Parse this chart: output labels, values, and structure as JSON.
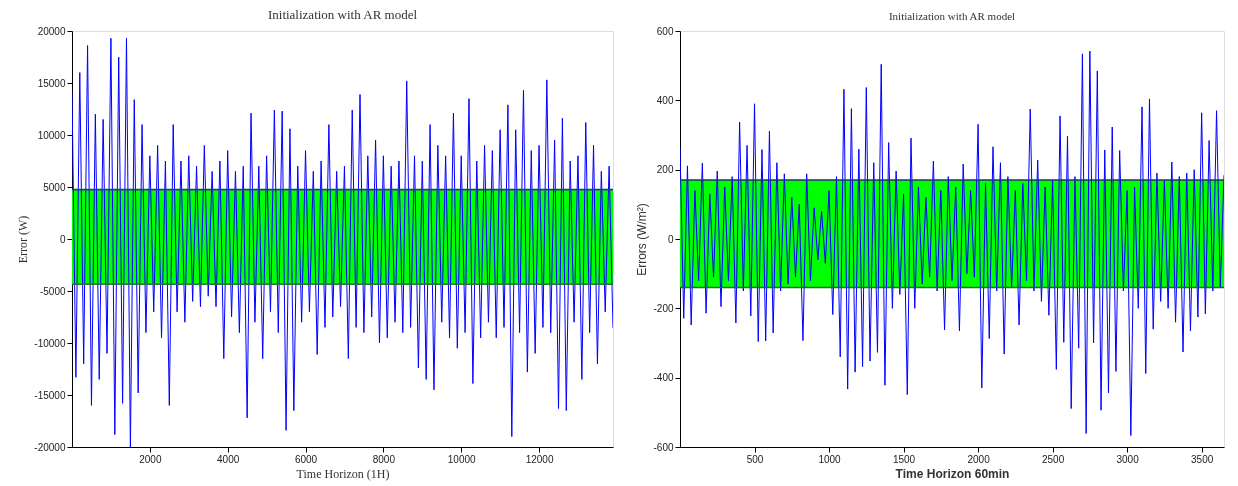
{
  "chart_data": [
    {
      "type": "line",
      "title": "Initialization with AR model",
      "xlabel": "Time Horizon (1H)",
      "ylabel": "Error (W)",
      "xlim": [
        0,
        13900
      ],
      "xticks": [
        2000,
        4000,
        6000,
        8000,
        10000,
        12000
      ],
      "ylim": [
        -20000,
        20000
      ],
      "yticks": [
        -20000,
        -15000,
        -10000,
        -5000,
        0,
        5000,
        10000,
        15000,
        20000
      ],
      "grid": false,
      "marker": "none",
      "line_style": "solid",
      "bands": [
        {
          "axis": "y",
          "from": -4350,
          "to": 4750,
          "color": "#00ff00"
        }
      ],
      "ref_lines": [
        {
          "axis": "y",
          "value": 4750,
          "color": "#2a3a8a"
        },
        {
          "axis": "y",
          "value": -4350,
          "color": "#2e6e3e"
        }
      ],
      "x": [
        0,
        100,
        200,
        300,
        400,
        500,
        600,
        700,
        800,
        900,
        1000,
        1100,
        1200,
        1300,
        1400,
        1500,
        1600,
        1700,
        1800,
        1900,
        2000,
        2100,
        2200,
        2300,
        2400,
        2500,
        2600,
        2700,
        2800,
        2900,
        3000,
        3100,
        3200,
        3300,
        3400,
        3500,
        3600,
        3700,
        3800,
        3900,
        4000,
        4100,
        4200,
        4300,
        4400,
        4500,
        4600,
        4700,
        4800,
        4900,
        5000,
        5100,
        5200,
        5300,
        5400,
        5500,
        5600,
        5700,
        5800,
        5900,
        6000,
        6100,
        6200,
        6300,
        6400,
        6500,
        6600,
        6700,
        6800,
        6900,
        7000,
        7100,
        7200,
        7300,
        7400,
        7500,
        7600,
        7700,
        7800,
        7900,
        8000,
        8100,
        8200,
        8300,
        8400,
        8500,
        8600,
        8700,
        8800,
        8900,
        9000,
        9100,
        9200,
        9300,
        9400,
        9500,
        9600,
        9700,
        9800,
        9900,
        10000,
        10100,
        10200,
        10300,
        10400,
        10500,
        10600,
        10700,
        10800,
        10900,
        11000,
        11100,
        11200,
        11300,
        11400,
        11500,
        11600,
        11700,
        11800,
        11900,
        12000,
        12100,
        12200,
        12300,
        12400,
        12500,
        12600,
        12700,
        12800,
        12900,
        13000,
        13100,
        13200,
        13300,
        13400,
        13500,
        13600,
        13700,
        13800,
        13900
      ],
      "series": [
        {
          "color": "#0000ff",
          "values": [
            14200,
            -13300,
            16000,
            -12000,
            18600,
            -16000,
            12000,
            -13500,
            11500,
            -11000,
            19300,
            -18800,
            17500,
            -15800,
            19300,
            -20000,
            13400,
            -14800,
            11000,
            -9000,
            8000,
            -7000,
            9000,
            -9500,
            7500,
            -16000,
            11000,
            -7000,
            7500,
            -8000,
            8000,
            -6000,
            7000,
            -6500,
            9000,
            -5500,
            6500,
            -6500,
            7500,
            -11500,
            8500,
            -7500,
            6500,
            -9000,
            7000,
            -17200,
            12100,
            -8000,
            7000,
            -11500,
            8000,
            -7000,
            12400,
            -9000,
            12300,
            -18400,
            10600,
            -16500,
            7000,
            -8000,
            8500,
            -7000,
            6500,
            -11100,
            7500,
            -8500,
            11000,
            -7500,
            6500,
            -6500,
            7000,
            -11500,
            12400,
            -8500,
            13900,
            -9000,
            8000,
            -7500,
            9500,
            -10000,
            8000,
            -9500,
            7000,
            -8000,
            7500,
            -9000,
            15200,
            -8500,
            8000,
            -12400,
            7500,
            -13500,
            11000,
            -14500,
            9000,
            -8000,
            8000,
            -9500,
            12100,
            -10500,
            8000,
            -9000,
            13500,
            -13900,
            7500,
            -9500,
            9000,
            -8000,
            8500,
            -9500,
            10500,
            -8500,
            12900,
            -19000,
            10500,
            -9000,
            14300,
            -12800,
            8500,
            -11000,
            9000,
            -8500,
            15300,
            -9000,
            9500,
            -16300,
            11600,
            -16500,
            7500,
            -8000,
            8000,
            -13500,
            11200,
            -9000,
            9000,
            -12000,
            6500,
            -7000,
            7000,
            -8500
          ]
        }
      ]
    },
    {
      "type": "line",
      "title": "Initialization with AR model",
      "xlabel": "Time Horizon 60min",
      "ylabel": "Errors (W/m²)",
      "xlim": [
        0,
        3650
      ],
      "xticks": [
        500,
        1000,
        1500,
        2000,
        2500,
        3000,
        3500
      ],
      "ylim": [
        -600,
        600
      ],
      "yticks": [
        -600,
        -400,
        -200,
        0,
        200,
        400,
        600
      ],
      "grid": false,
      "marker": "none",
      "line_style": "solid",
      "bands": [
        {
          "axis": "y",
          "from": -140,
          "to": 170,
          "color": "#00ff00"
        }
      ],
      "ref_lines": [
        {
          "axis": "y",
          "value": 170,
          "color": "#22306e"
        },
        {
          "axis": "y",
          "value": -140,
          "color": "#1a6a1a"
        }
      ],
      "x": [
        0,
        25,
        50,
        75,
        100,
        125,
        150,
        175,
        200,
        225,
        250,
        275,
        300,
        325,
        350,
        375,
        400,
        425,
        450,
        475,
        500,
        525,
        550,
        575,
        600,
        625,
        650,
        675,
        700,
        725,
        750,
        775,
        800,
        825,
        850,
        875,
        900,
        925,
        950,
        975,
        1000,
        1025,
        1050,
        1075,
        1100,
        1125,
        1150,
        1175,
        1200,
        1225,
        1250,
        1275,
        1300,
        1325,
        1350,
        1375,
        1400,
        1425,
        1450,
        1475,
        1500,
        1525,
        1550,
        1575,
        1600,
        1625,
        1650,
        1675,
        1700,
        1725,
        1750,
        1775,
        1800,
        1825,
        1850,
        1875,
        1900,
        1925,
        1950,
        1975,
        2000,
        2025,
        2050,
        2075,
        2100,
        2125,
        2150,
        2175,
        2200,
        2225,
        2250,
        2275,
        2300,
        2325,
        2350,
        2375,
        2400,
        2425,
        2450,
        2475,
        2500,
        2525,
        2550,
        2575,
        2600,
        2625,
        2650,
        2675,
        2700,
        2725,
        2750,
        2775,
        2800,
        2825,
        2850,
        2875,
        2900,
        2925,
        2950,
        2975,
        3000,
        3025,
        3050,
        3075,
        3100,
        3125,
        3150,
        3175,
        3200,
        3225,
        3250,
        3275,
        3300,
        3325,
        3350,
        3375,
        3400,
        3425,
        3450,
        3475,
        3500,
        3525,
        3550,
        3575,
        3600,
        3625,
        3650
      ],
      "series": [
        {
          "color": "#0000ff",
          "values": [
            261,
            -229,
            211,
            -248,
            140,
            -120,
            219,
            -214,
            130,
            -110,
            196,
            -195,
            150,
            -120,
            180,
            -242,
            337,
            -150,
            270,
            -222,
            390,
            -296,
            258,
            -294,
            311,
            -271,
            220,
            -150,
            188,
            -130,
            120,
            -110,
            100,
            -293,
            188,
            -120,
            90,
            -60,
            80,
            -70,
            140,
            -218,
            180,
            -340,
            432,
            -433,
            376,
            -384,
            259,
            -368,
            437,
            -352,
            220,
            -327,
            504,
            -422,
            278,
            -200,
            196,
            -160,
            130,
            -449,
            291,
            -200,
            150,
            -130,
            120,
            -110,
            225,
            -150,
            140,
            -262,
            180,
            -120,
            150,
            -265,
            216,
            -100,
            140,
            -110,
            331,
            -430,
            160,
            -287,
            266,
            -150,
            220,
            -332,
            180,
            -140,
            140,
            -248,
            160,
            -120,
            375,
            -150,
            228,
            -180,
            150,
            -220,
            170,
            -376,
            355,
            -298,
            297,
            -489,
            180,
            -315,
            534,
            -561,
            542,
            -300,
            485,
            -494,
            257,
            -444,
            323,
            -382,
            255,
            -150,
            140,
            -567,
            150,
            -200,
            381,
            -388,
            404,
            -260,
            190,
            -180,
            170,
            -200,
            222,
            -240,
            180,
            -326,
            190,
            -265,
            200,
            -225,
            364,
            -216,
            284,
            -150,
            370,
            -140,
            183
          ]
        }
      ]
    }
  ]
}
